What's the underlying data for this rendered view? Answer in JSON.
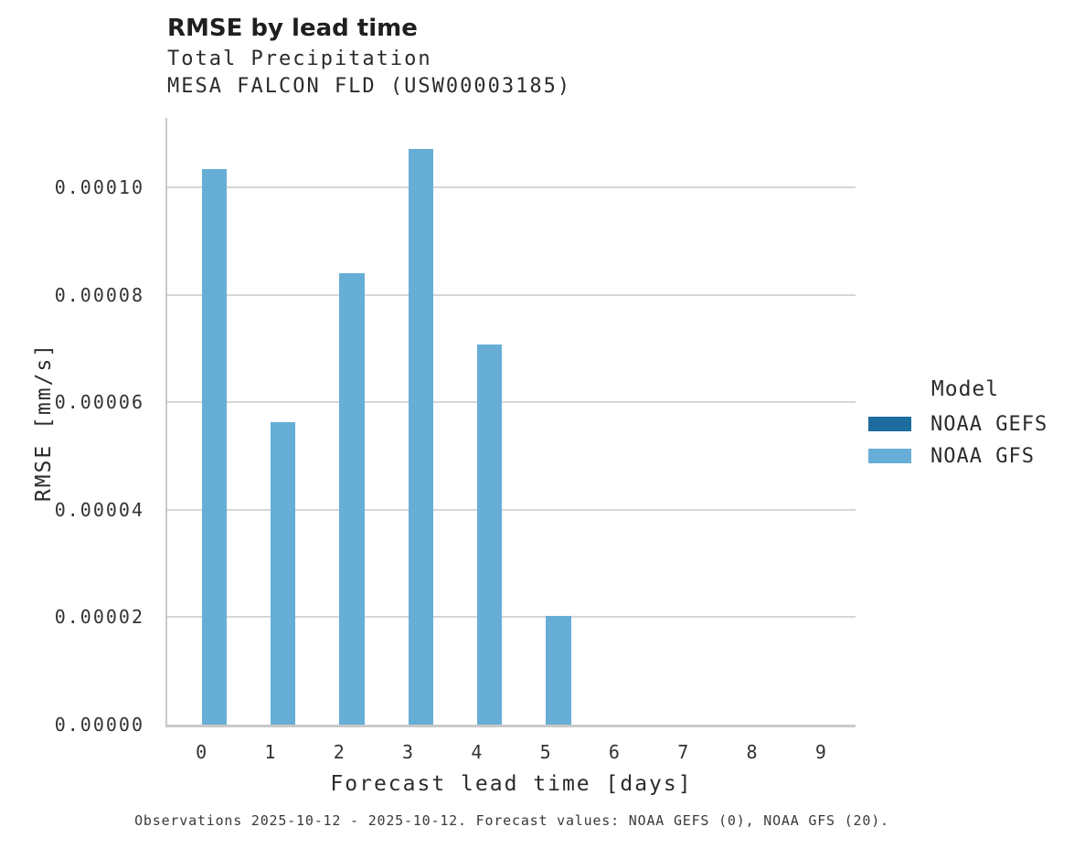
{
  "title": "RMSE by lead time",
  "subtitle_lines": [
    "Total Precipitation",
    "MESA FALCON FLD (USW00003185)"
  ],
  "caption": "Observations 2025-10-12 - 2025-10-12. Forecast values: NOAA GEFS (0), NOAA GFS (20).",
  "colors": {
    "noaa_gefs": "#1d6d9e",
    "noaa_gfs": "#67aed6",
    "gridline": "#d6d6d6",
    "spine": "#c9c9c9",
    "text": "#262626"
  },
  "legend": {
    "title": "Model",
    "items": [
      {
        "label": "NOAA GEFS",
        "color_key": "noaa_gefs"
      },
      {
        "label": "NOAA GFS",
        "color_key": "noaa_gfs"
      }
    ]
  },
  "chart_data": {
    "type": "bar",
    "title": "RMSE by lead time",
    "subtitle": "Total Precipitation — MESA FALCON FLD (USW00003185)",
    "xlabel": "Forecast lead time [days]",
    "ylabel": "RMSE [mm/s]",
    "categories": [
      "0",
      "1",
      "2",
      "3",
      "4",
      "5",
      "6",
      "7",
      "8",
      "9"
    ],
    "series": [
      {
        "name": "NOAA GEFS",
        "color_key": "noaa_gefs",
        "values": [
          null,
          null,
          null,
          null,
          null,
          null,
          null,
          null,
          null,
          null
        ]
      },
      {
        "name": "NOAA GFS",
        "color_key": "noaa_gfs",
        "values": [
          0.0001034,
          5.64e-05,
          8.4e-05,
          0.0001073,
          7.08e-05,
          2.02e-05,
          null,
          null,
          null,
          null
        ]
      }
    ],
    "ylim": [
      0,
      0.000113
    ],
    "yticks": [
      0.0,
      2e-05,
      4e-05,
      6e-05,
      8e-05,
      0.0001
    ],
    "ytick_labels": [
      "0.00000",
      "0.00002",
      "0.00004",
      "0.00006",
      "0.00008",
      "0.00010"
    ],
    "grid": true,
    "legend_position": "center-right"
  }
}
